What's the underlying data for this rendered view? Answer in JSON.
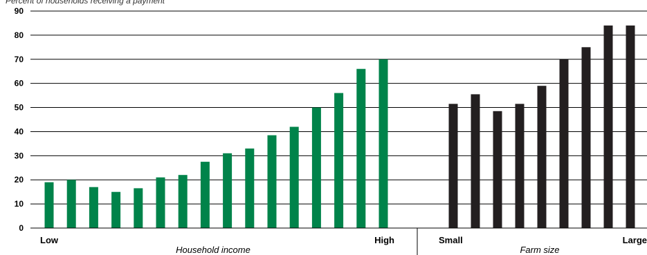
{
  "header_note": "Percent of households receiving a payment",
  "chart_data": {
    "type": "bar",
    "ylim": [
      0,
      90
    ],
    "yticks": [
      0,
      10,
      20,
      30,
      40,
      50,
      60,
      70,
      80,
      90
    ],
    "grid": true,
    "groups": [
      {
        "label": "Household income",
        "left_end": "Low",
        "right_end": "High",
        "color": "#00834a",
        "values": [
          19,
          20,
          17,
          15,
          16.5,
          21,
          22,
          27.5,
          31,
          33,
          38.5,
          42,
          50,
          56,
          66,
          70
        ]
      },
      {
        "label": "Farm size",
        "left_end": "Small",
        "right_end": "Large",
        "color": "#231f20",
        "values": [
          51.5,
          55.5,
          48.5,
          51.5,
          59,
          70,
          75,
          84,
          84
        ]
      }
    ]
  }
}
